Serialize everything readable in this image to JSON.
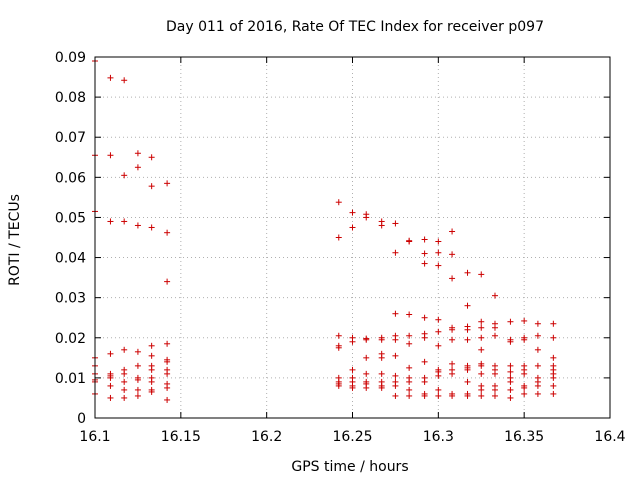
{
  "chart_data": {
    "type": "scatter",
    "title": "Day 011 of 2016, Rate Of TEC Index for receiver p097",
    "xlabel": "GPS time / hours",
    "ylabel": "ROTI / TECUs",
    "xlim": [
      16.1,
      16.4
    ],
    "ylim": [
      0,
      0.09
    ],
    "x_ticks": [
      16.1,
      16.15,
      16.2,
      16.25,
      16.3,
      16.35,
      16.4
    ],
    "x_tick_labels": [
      "16.1",
      "16.15",
      "16.2",
      "16.25",
      "16.3",
      "16.35",
      "16.4"
    ],
    "y_ticks": [
      0,
      0.01,
      0.02,
      0.03,
      0.04,
      0.05,
      0.06,
      0.07,
      0.08,
      0.09
    ],
    "y_tick_labels": [
      "0",
      "0.01",
      "0.02",
      "0.03",
      "0.04",
      "0.05",
      "0.06",
      "0.07",
      "0.08",
      "0.09"
    ],
    "grid": true,
    "marker": "+",
    "marker_color": "#cc0000",
    "series": [
      {
        "name": "ROTI",
        "points": [
          [
            16.1,
            0.089
          ],
          [
            16.1,
            0.0655
          ],
          [
            16.1,
            0.0515
          ],
          [
            16.1,
            0.015
          ],
          [
            16.1,
            0.013
          ],
          [
            16.1,
            0.011
          ],
          [
            16.1,
            0.0095
          ],
          [
            16.1,
            0.009
          ],
          [
            16.1,
            0.006
          ],
          [
            16.109,
            0.0848
          ],
          [
            16.109,
            0.0655
          ],
          [
            16.109,
            0.049
          ],
          [
            16.109,
            0.016
          ],
          [
            16.109,
            0.011
          ],
          [
            16.109,
            0.0105
          ],
          [
            16.109,
            0.01
          ],
          [
            16.109,
            0.008
          ],
          [
            16.109,
            0.005
          ],
          [
            16.117,
            0.0842
          ],
          [
            16.117,
            0.0605
          ],
          [
            16.117,
            0.049
          ],
          [
            16.117,
            0.017
          ],
          [
            16.117,
            0.012
          ],
          [
            16.117,
            0.011
          ],
          [
            16.117,
            0.009
          ],
          [
            16.117,
            0.007
          ],
          [
            16.117,
            0.005
          ],
          [
            16.125,
            0.066
          ],
          [
            16.125,
            0.0625
          ],
          [
            16.125,
            0.048
          ],
          [
            16.125,
            0.0165
          ],
          [
            16.125,
            0.013
          ],
          [
            16.125,
            0.01
          ],
          [
            16.125,
            0.0095
          ],
          [
            16.125,
            0.007
          ],
          [
            16.125,
            0.0055
          ],
          [
            16.133,
            0.065
          ],
          [
            16.133,
            0.0578
          ],
          [
            16.133,
            0.0475
          ],
          [
            16.133,
            0.018
          ],
          [
            16.133,
            0.0155
          ],
          [
            16.133,
            0.013
          ],
          [
            16.133,
            0.012
          ],
          [
            16.133,
            0.01
          ],
          [
            16.133,
            0.009
          ],
          [
            16.133,
            0.007
          ],
          [
            16.133,
            0.0065
          ],
          [
            16.142,
            0.0585
          ],
          [
            16.142,
            0.0462
          ],
          [
            16.142,
            0.034
          ],
          [
            16.142,
            0.0185
          ],
          [
            16.142,
            0.0145
          ],
          [
            16.142,
            0.014
          ],
          [
            16.142,
            0.012
          ],
          [
            16.142,
            0.011
          ],
          [
            16.142,
            0.0085
          ],
          [
            16.142,
            0.0075
          ],
          [
            16.142,
            0.0045
          ],
          [
            16.242,
            0.0538
          ],
          [
            16.242,
            0.045
          ],
          [
            16.242,
            0.0205
          ],
          [
            16.242,
            0.018
          ],
          [
            16.242,
            0.0175
          ],
          [
            16.242,
            0.01
          ],
          [
            16.242,
            0.009
          ],
          [
            16.242,
            0.0085
          ],
          [
            16.242,
            0.008
          ],
          [
            16.25,
            0.0512
          ],
          [
            16.25,
            0.0475
          ],
          [
            16.25,
            0.02
          ],
          [
            16.25,
            0.019
          ],
          [
            16.25,
            0.012
          ],
          [
            16.25,
            0.01
          ],
          [
            16.25,
            0.009
          ],
          [
            16.25,
            0.008
          ],
          [
            16.25,
            0.0075
          ],
          [
            16.258,
            0.0508
          ],
          [
            16.258,
            0.05
          ],
          [
            16.258,
            0.0198
          ],
          [
            16.258,
            0.0195
          ],
          [
            16.258,
            0.015
          ],
          [
            16.258,
            0.011
          ],
          [
            16.258,
            0.009
          ],
          [
            16.258,
            0.0085
          ],
          [
            16.258,
            0.0075
          ],
          [
            16.267,
            0.049
          ],
          [
            16.267,
            0.048
          ],
          [
            16.267,
            0.02
          ],
          [
            16.267,
            0.0195
          ],
          [
            16.267,
            0.016
          ],
          [
            16.267,
            0.015
          ],
          [
            16.267,
            0.011
          ],
          [
            16.267,
            0.009
          ],
          [
            16.267,
            0.008
          ],
          [
            16.267,
            0.0075
          ],
          [
            16.275,
            0.0485
          ],
          [
            16.275,
            0.0412
          ],
          [
            16.275,
            0.026
          ],
          [
            16.275,
            0.0205
          ],
          [
            16.275,
            0.0195
          ],
          [
            16.275,
            0.0155
          ],
          [
            16.275,
            0.0105
          ],
          [
            16.275,
            0.009
          ],
          [
            16.275,
            0.008
          ],
          [
            16.275,
            0.0055
          ],
          [
            16.283,
            0.0442
          ],
          [
            16.283,
            0.044
          ],
          [
            16.283,
            0.0258
          ],
          [
            16.283,
            0.0205
          ],
          [
            16.283,
            0.0185
          ],
          [
            16.283,
            0.0125
          ],
          [
            16.283,
            0.01
          ],
          [
            16.283,
            0.009
          ],
          [
            16.283,
            0.007
          ],
          [
            16.283,
            0.0055
          ],
          [
            16.292,
            0.0445
          ],
          [
            16.292,
            0.041
          ],
          [
            16.292,
            0.0385
          ],
          [
            16.292,
            0.025
          ],
          [
            16.292,
            0.021
          ],
          [
            16.292,
            0.02
          ],
          [
            16.292,
            0.014
          ],
          [
            16.292,
            0.01
          ],
          [
            16.292,
            0.009
          ],
          [
            16.292,
            0.006
          ],
          [
            16.292,
            0.0055
          ],
          [
            16.3,
            0.044
          ],
          [
            16.3,
            0.0412
          ],
          [
            16.3,
            0.038
          ],
          [
            16.3,
            0.0245
          ],
          [
            16.3,
            0.0215
          ],
          [
            16.3,
            0.018
          ],
          [
            16.3,
            0.012
          ],
          [
            16.3,
            0.0115
          ],
          [
            16.3,
            0.0105
          ],
          [
            16.3,
            0.007
          ],
          [
            16.3,
            0.0055
          ],
          [
            16.308,
            0.0465
          ],
          [
            16.308,
            0.0408
          ],
          [
            16.308,
            0.0348
          ],
          [
            16.308,
            0.0225
          ],
          [
            16.308,
            0.022
          ],
          [
            16.308,
            0.0195
          ],
          [
            16.308,
            0.0135
          ],
          [
            16.308,
            0.012
          ],
          [
            16.308,
            0.011
          ],
          [
            16.308,
            0.006
          ],
          [
            16.308,
            0.0055
          ],
          [
            16.317,
            0.0362
          ],
          [
            16.317,
            0.028
          ],
          [
            16.317,
            0.0228
          ],
          [
            16.317,
            0.022
          ],
          [
            16.317,
            0.0195
          ],
          [
            16.317,
            0.013
          ],
          [
            16.317,
            0.0125
          ],
          [
            16.317,
            0.012
          ],
          [
            16.317,
            0.009
          ],
          [
            16.317,
            0.006
          ],
          [
            16.317,
            0.0055
          ],
          [
            16.325,
            0.0358
          ],
          [
            16.325,
            0.024
          ],
          [
            16.325,
            0.0225
          ],
          [
            16.325,
            0.02
          ],
          [
            16.325,
            0.017
          ],
          [
            16.325,
            0.0135
          ],
          [
            16.325,
            0.013
          ],
          [
            16.325,
            0.011
          ],
          [
            16.325,
            0.008
          ],
          [
            16.325,
            0.007
          ],
          [
            16.325,
            0.0055
          ],
          [
            16.333,
            0.0305
          ],
          [
            16.333,
            0.0235
          ],
          [
            16.333,
            0.0225
          ],
          [
            16.333,
            0.0205
          ],
          [
            16.333,
            0.013
          ],
          [
            16.333,
            0.012
          ],
          [
            16.333,
            0.011
          ],
          [
            16.333,
            0.008
          ],
          [
            16.333,
            0.007
          ],
          [
            16.333,
            0.0055
          ],
          [
            16.342,
            0.024
          ],
          [
            16.342,
            0.0195
          ],
          [
            16.342,
            0.019
          ],
          [
            16.342,
            0.013
          ],
          [
            16.342,
            0.0115
          ],
          [
            16.342,
            0.01
          ],
          [
            16.342,
            0.009
          ],
          [
            16.342,
            0.007
          ],
          [
            16.342,
            0.005
          ],
          [
            16.35,
            0.0242
          ],
          [
            16.35,
            0.02
          ],
          [
            16.35,
            0.0195
          ],
          [
            16.35,
            0.013
          ],
          [
            16.35,
            0.012
          ],
          [
            16.35,
            0.011
          ],
          [
            16.35,
            0.008
          ],
          [
            16.35,
            0.0075
          ],
          [
            16.35,
            0.006
          ],
          [
            16.358,
            0.0235
          ],
          [
            16.358,
            0.0205
          ],
          [
            16.358,
            0.017
          ],
          [
            16.358,
            0.013
          ],
          [
            16.358,
            0.01
          ],
          [
            16.358,
            0.009
          ],
          [
            16.358,
            0.008
          ],
          [
            16.358,
            0.006
          ],
          [
            16.367,
            0.0235
          ],
          [
            16.367,
            0.02
          ],
          [
            16.367,
            0.015
          ],
          [
            16.367,
            0.013
          ],
          [
            16.367,
            0.012
          ],
          [
            16.367,
            0.011
          ],
          [
            16.367,
            0.01
          ],
          [
            16.367,
            0.008
          ],
          [
            16.367,
            0.006
          ]
        ]
      }
    ]
  }
}
